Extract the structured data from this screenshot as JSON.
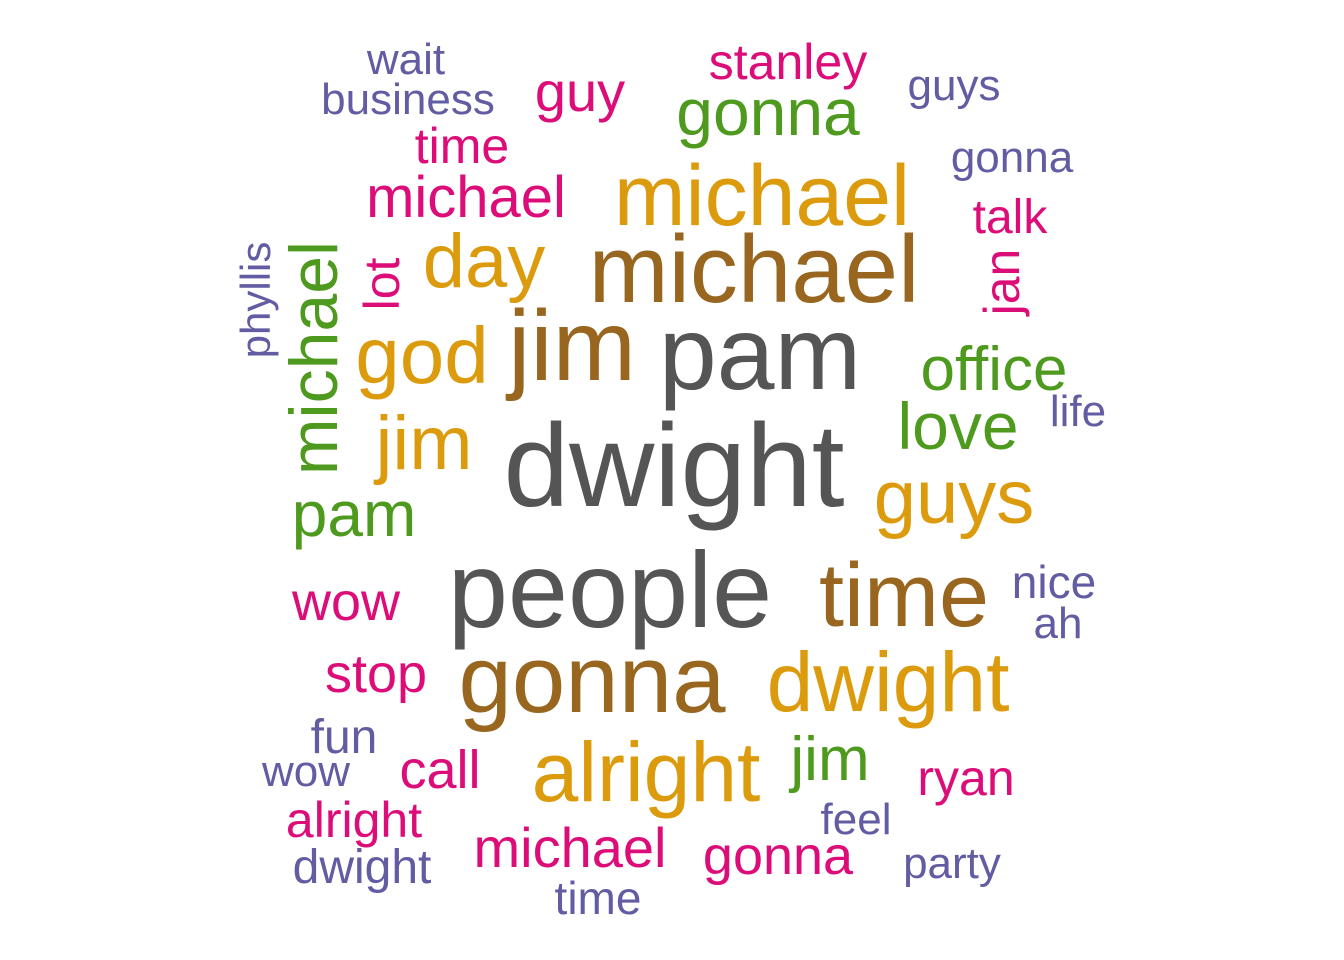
{
  "palette": {
    "gray": "#555555",
    "brown": "#98661e",
    "gold": "#dc9b0d",
    "green": "#4e9a1e",
    "magenta": "#dc0c78",
    "purple": "#625ca3"
  },
  "words": [
    {
      "text": "dwight",
      "color": "gray"
    },
    {
      "text": "people",
      "color": "gray"
    },
    {
      "text": "pam",
      "color": "gray"
    },
    {
      "text": "michael",
      "color": "brown"
    },
    {
      "text": "jim",
      "color": "brown"
    },
    {
      "text": "gonna",
      "color": "brown"
    },
    {
      "text": "time",
      "color": "brown"
    },
    {
      "text": "michael",
      "color": "gold"
    },
    {
      "text": "dwight",
      "color": "gold"
    },
    {
      "text": "alright",
      "color": "gold"
    },
    {
      "text": "god",
      "color": "gold"
    },
    {
      "text": "day",
      "color": "gold"
    },
    {
      "text": "guys",
      "color": "gold"
    },
    {
      "text": "jim",
      "color": "gold"
    },
    {
      "text": "gonna",
      "color": "green"
    },
    {
      "text": "michael",
      "color": "green"
    },
    {
      "text": "office",
      "color": "green"
    },
    {
      "text": "love",
      "color": "green"
    },
    {
      "text": "pam",
      "color": "green"
    },
    {
      "text": "jim",
      "color": "green"
    },
    {
      "text": "michael",
      "color": "magenta"
    },
    {
      "text": "guy",
      "color": "magenta"
    },
    {
      "text": "stanley",
      "color": "magenta"
    },
    {
      "text": "time",
      "color": "magenta"
    },
    {
      "text": "lot",
      "color": "magenta"
    },
    {
      "text": "talk",
      "color": "magenta"
    },
    {
      "text": "jan",
      "color": "magenta"
    },
    {
      "text": "wow",
      "color": "magenta"
    },
    {
      "text": "stop",
      "color": "magenta"
    },
    {
      "text": "call",
      "color": "magenta"
    },
    {
      "text": "ryan",
      "color": "magenta"
    },
    {
      "text": "alright",
      "color": "magenta"
    },
    {
      "text": "michael",
      "color": "magenta"
    },
    {
      "text": "gonna",
      "color": "magenta"
    },
    {
      "text": "wait",
      "color": "purple"
    },
    {
      "text": "business",
      "color": "purple"
    },
    {
      "text": "guys",
      "color": "purple"
    },
    {
      "text": "gonna",
      "color": "purple"
    },
    {
      "text": "phyllis",
      "color": "purple"
    },
    {
      "text": "life",
      "color": "purple"
    },
    {
      "text": "nice",
      "color": "purple"
    },
    {
      "text": "ah",
      "color": "purple"
    },
    {
      "text": "fun",
      "color": "purple"
    },
    {
      "text": "wow",
      "color": "purple"
    },
    {
      "text": "feel",
      "color": "purple"
    },
    {
      "text": "party",
      "color": "purple"
    },
    {
      "text": "dwight",
      "color": "purple"
    },
    {
      "text": "time",
      "color": "purple"
    }
  ]
}
